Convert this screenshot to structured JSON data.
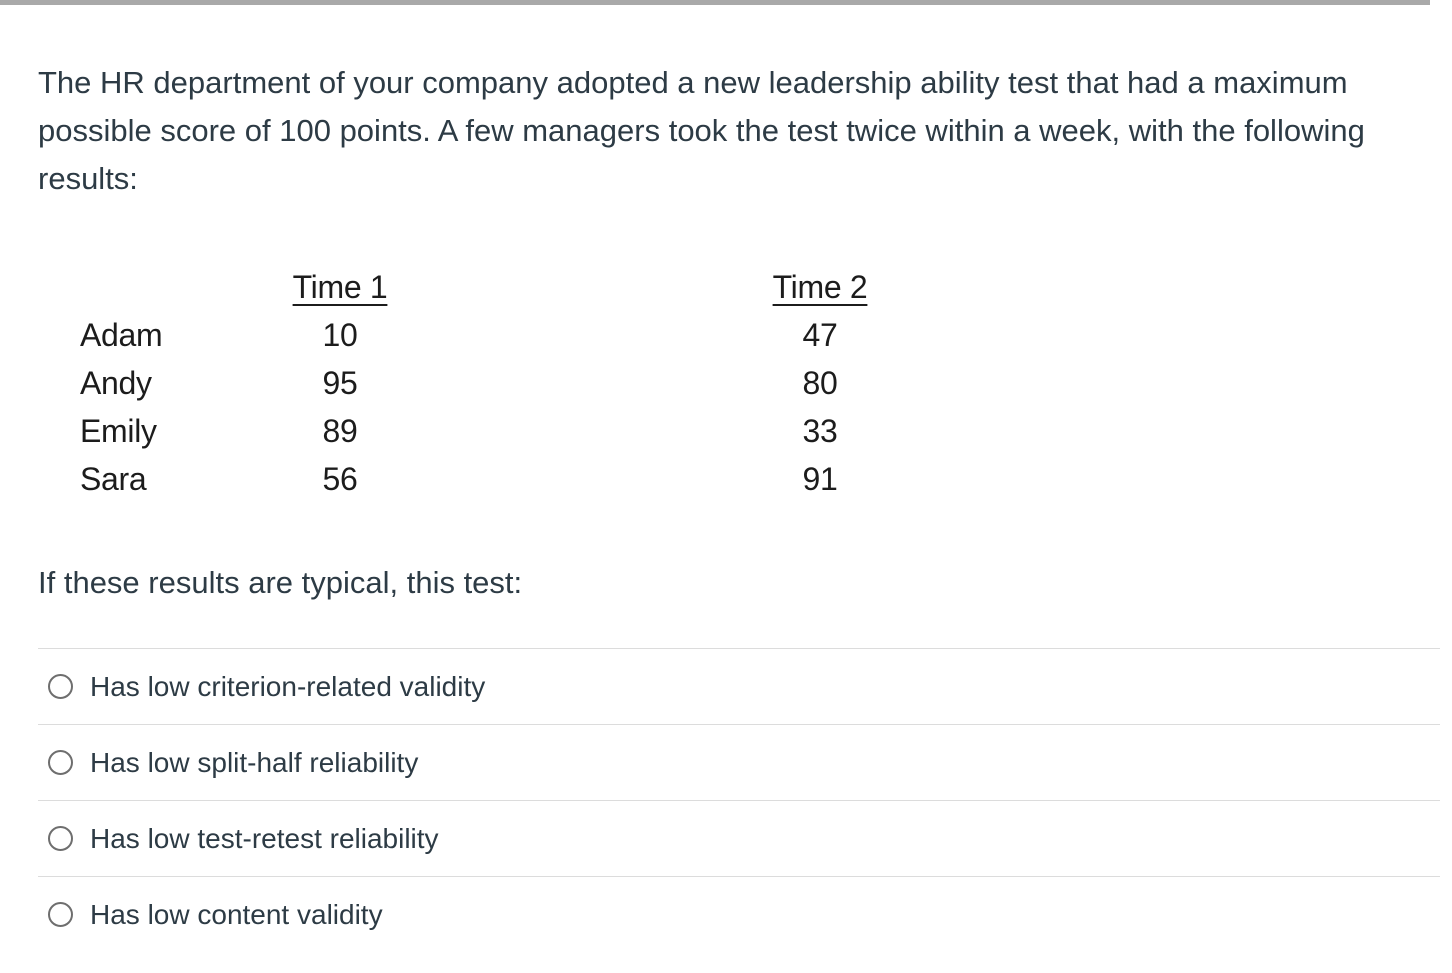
{
  "question": {
    "lines": [
      "The HR department of your company adopted a new leadership ability test that had a maximum",
      "possible score of 100 points. A few managers took the test twice within a week, with the following",
      "results:"
    ],
    "prompt": "If these results are typical, this test:"
  },
  "chart_data": {
    "type": "table",
    "columns": [
      "",
      "Time 1",
      "Time 2"
    ],
    "rows": [
      [
        "Adam",
        10,
        47
      ],
      [
        "Andy",
        95,
        80
      ],
      [
        "Emily",
        89,
        33
      ],
      [
        "Sara",
        56,
        91
      ]
    ]
  },
  "table": {
    "header_time1": "Time 1",
    "header_time2": "Time 2",
    "rows": [
      {
        "name": "Adam",
        "time1": "10",
        "time2": "47"
      },
      {
        "name": "Andy",
        "time1": "95",
        "time2": "80"
      },
      {
        "name": "Emily",
        "time1": "89",
        "time2": "33"
      },
      {
        "name": "Sara",
        "time1": "56",
        "time2": "91"
      }
    ]
  },
  "options": [
    {
      "label": "Has low criterion-related validity",
      "selected": false
    },
    {
      "label": "Has low split-half reliability",
      "selected": false
    },
    {
      "label": "Has low test-retest reliability",
      "selected": false
    },
    {
      "label": "Has low content validity",
      "selected": false
    }
  ],
  "colors": {
    "topbar": "#a9a9a9",
    "text": "#2d3b45",
    "table_text": "#1c1c1c",
    "divider": "#dcdcdc",
    "radio_border": "#6e6e6e"
  }
}
